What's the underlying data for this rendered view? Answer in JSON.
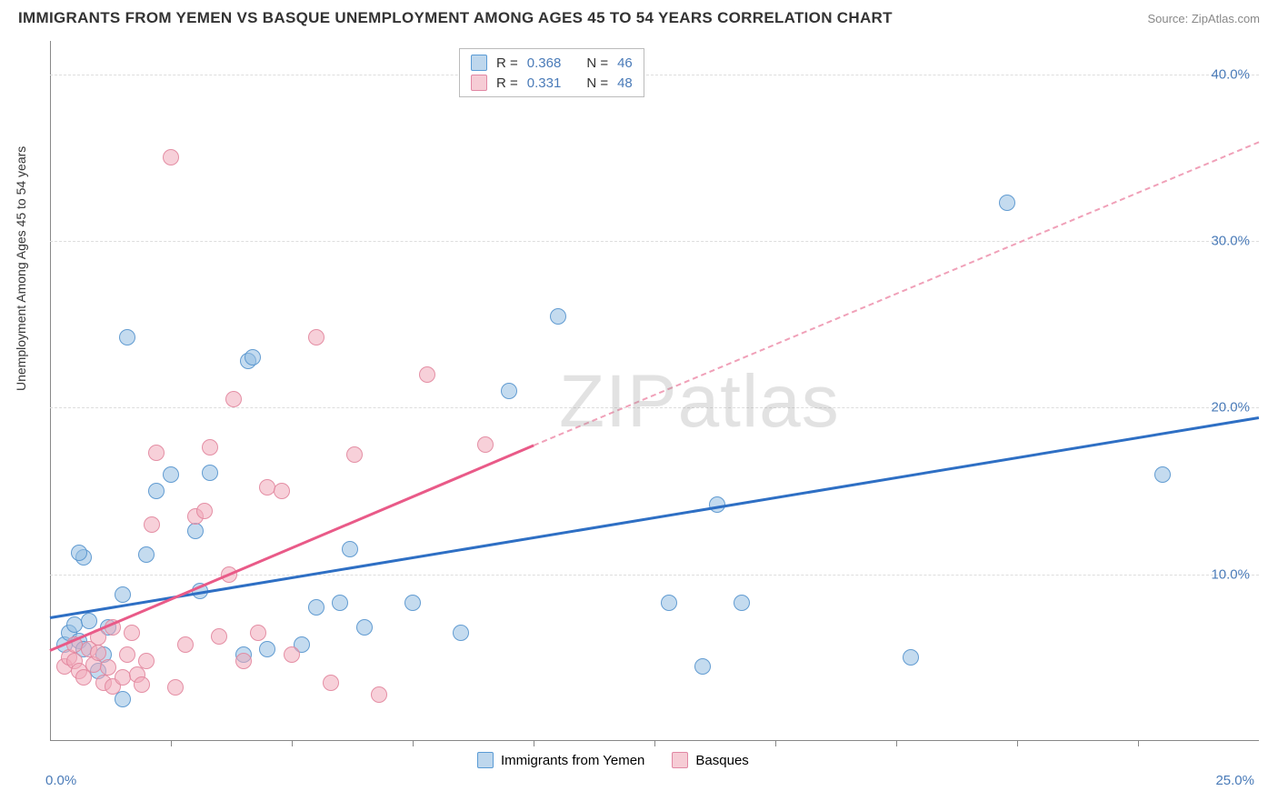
{
  "title": "IMMIGRANTS FROM YEMEN VS BASQUE UNEMPLOYMENT AMONG AGES 45 TO 54 YEARS CORRELATION CHART",
  "source": "Source: ZipAtlas.com",
  "ylabel": "Unemployment Among Ages 45 to 54 years",
  "watermark_a": "ZIP",
  "watermark_b": "atlas",
  "chart": {
    "type": "scatter",
    "background_color": "#ffffff",
    "grid_color": "#dddddd",
    "grid_style": "dashed",
    "axis_color": "#888888",
    "xlim": [
      0,
      25
    ],
    "ylim": [
      0,
      42
    ],
    "y_ticks": [
      10,
      20,
      30,
      40
    ],
    "y_tick_labels": [
      "10.0%",
      "20.0%",
      "30.0%",
      "40.0%"
    ],
    "x_tick_positions": [
      2.5,
      5,
      7.5,
      10,
      12.5,
      15,
      17.5,
      20,
      22.5
    ],
    "x_zero_label": "0.0%",
    "x_max_label": "25.0%",
    "y_tick_color": "#4a7bb8",
    "x_tick_color": "#4a7bb8",
    "marker_size": 18,
    "series": [
      {
        "name": "Immigrants from Yemen",
        "color_fill": "rgba(147,189,225,0.55)",
        "color_stroke": "rgba(80,145,205,0.85)",
        "R": "0.368",
        "N": "46",
        "trend": {
          "color": "#2e6fc4",
          "y_at_x0": 7.5,
          "y_at_xmax": 19.5,
          "width": 3
        },
        "points": [
          [
            0.3,
            5.8
          ],
          [
            0.4,
            6.5
          ],
          [
            0.5,
            7
          ],
          [
            0.6,
            6
          ],
          [
            0.7,
            5.5
          ],
          [
            0.8,
            7.2
          ],
          [
            0.7,
            11
          ],
          [
            0.6,
            11.3
          ],
          [
            1.0,
            4.2
          ],
          [
            1.1,
            5.2
          ],
          [
            1.2,
            6.8
          ],
          [
            1.5,
            8.8
          ],
          [
            1.6,
            24.2
          ],
          [
            2.0,
            11.2
          ],
          [
            1.5,
            2.5
          ],
          [
            2.2,
            15
          ],
          [
            2.5,
            16
          ],
          [
            3.0,
            12.6
          ],
          [
            3.1,
            9
          ],
          [
            3.3,
            16.1
          ],
          [
            4.0,
            5.2
          ],
          [
            4.1,
            22.8
          ],
          [
            4.2,
            23
          ],
          [
            4.5,
            5.5
          ],
          [
            5.2,
            5.8
          ],
          [
            5.5,
            8
          ],
          [
            6.0,
            8.3
          ],
          [
            6.2,
            11.5
          ],
          [
            6.5,
            6.8
          ],
          [
            7.5,
            8.3
          ],
          [
            8.5,
            6.5
          ],
          [
            9.5,
            21
          ],
          [
            10.5,
            25.5
          ],
          [
            12.8,
            8.3
          ],
          [
            13.5,
            4.5
          ],
          [
            13.8,
            14.2
          ],
          [
            14.3,
            8.3
          ],
          [
            17.8,
            5
          ],
          [
            19.8,
            32.3
          ],
          [
            23.0,
            16
          ]
        ]
      },
      {
        "name": "Basques",
        "color_fill": "rgba(240,170,185,0.55)",
        "color_stroke": "rgba(225,130,155,0.85)",
        "R": "0.331",
        "N": "48",
        "trend": {
          "color": "#e95a88",
          "y_at_x0": 5.5,
          "y_at_x10": 17.8,
          "width": 3,
          "dashed_after_x": 10,
          "y_at_xmax": 36
        },
        "points": [
          [
            0.3,
            4.5
          ],
          [
            0.4,
            5
          ],
          [
            0.5,
            4.8
          ],
          [
            0.5,
            5.8
          ],
          [
            0.6,
            4.2
          ],
          [
            0.7,
            3.8
          ],
          [
            0.8,
            5.5
          ],
          [
            0.9,
            4.6
          ],
          [
            1.0,
            5.3
          ],
          [
            1.0,
            6.2
          ],
          [
            1.1,
            3.5
          ],
          [
            1.2,
            4.4
          ],
          [
            1.3,
            6.8
          ],
          [
            1.3,
            3.3
          ],
          [
            1.5,
            3.8
          ],
          [
            1.6,
            5.2
          ],
          [
            1.7,
            6.5
          ],
          [
            1.8,
            4
          ],
          [
            1.9,
            3.4
          ],
          [
            2.0,
            4.8
          ],
          [
            2.1,
            13
          ],
          [
            2.2,
            17.3
          ],
          [
            2.5,
            35
          ],
          [
            2.6,
            3.2
          ],
          [
            2.8,
            5.8
          ],
          [
            3.0,
            13.5
          ],
          [
            3.2,
            13.8
          ],
          [
            3.3,
            17.6
          ],
          [
            3.5,
            6.3
          ],
          [
            3.7,
            10
          ],
          [
            3.8,
            20.5
          ],
          [
            4.0,
            4.8
          ],
          [
            4.3,
            6.5
          ],
          [
            4.5,
            15.2
          ],
          [
            4.8,
            15
          ],
          [
            5.0,
            5.2
          ],
          [
            5.5,
            24.2
          ],
          [
            5.8,
            3.5
          ],
          [
            6.3,
            17.2
          ],
          [
            6.8,
            2.8
          ],
          [
            7.8,
            22
          ],
          [
            9.0,
            17.8
          ]
        ]
      }
    ]
  },
  "legend_top": {
    "rows": [
      {
        "swatch": "blue",
        "r_label": "R =",
        "r_val": "0.368",
        "n_label": "N =",
        "n_val": "46"
      },
      {
        "swatch": "pink",
        "r_label": "R =",
        "r_val": "0.331",
        "n_label": "N =",
        "n_val": "48"
      }
    ]
  },
  "legend_bottom": {
    "items": [
      {
        "swatch": "blue",
        "label": "Immigrants from Yemen"
      },
      {
        "swatch": "pink",
        "label": "Basques"
      }
    ]
  }
}
